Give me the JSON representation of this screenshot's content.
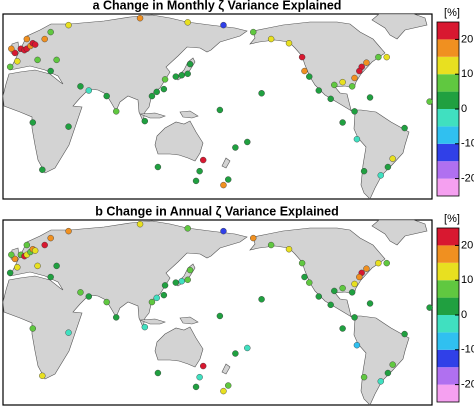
{
  "panels": [
    {
      "title": "a  Change in Monthly ζ Variance Explained",
      "stations": [
        [
          -5,
          50,
          22
        ],
        [
          0,
          53,
          20
        ],
        [
          3,
          52,
          25
        ],
        [
          5,
          53,
          22
        ],
        [
          8,
          55,
          18
        ],
        [
          10,
          57,
          23
        ],
        [
          12,
          56,
          20
        ],
        [
          5,
          60,
          15
        ],
        [
          -8,
          53,
          18
        ],
        [
          -3,
          44,
          10
        ],
        [
          -9,
          40,
          5
        ],
        [
          14,
          45,
          8
        ],
        [
          20,
          60,
          15
        ],
        [
          25,
          65,
          8
        ],
        [
          40,
          70,
          12
        ],
        [
          30,
          45,
          5
        ],
        [
          25,
          37,
          2
        ],
        [
          100,
          75,
          15
        ],
        [
          140,
          72,
          12
        ],
        [
          170,
          70,
          -15
        ],
        [
          140,
          35,
          3
        ],
        [
          135,
          34,
          0
        ],
        [
          130,
          33,
          1
        ],
        [
          142,
          42,
          2
        ],
        [
          121,
          31,
          5
        ],
        [
          114,
          22,
          3
        ],
        [
          110,
          19,
          2
        ],
        [
          120,
          24,
          1
        ],
        [
          104,
          1,
          0
        ],
        [
          80,
          8,
          5
        ],
        [
          72,
          19,
          2
        ],
        [
          50,
          26,
          3
        ],
        [
          57,
          23,
          -2
        ],
        [
          40,
          -3,
          0
        ],
        [
          18,
          -34,
          2
        ],
        [
          10,
          0,
          3
        ],
        [
          -17,
          15,
          8
        ],
        [
          153,
          -27,
          20
        ],
        [
          115,
          -32,
          1
        ],
        [
          147,
          -42,
          0
        ],
        [
          174,
          -41,
          2
        ],
        [
          150,
          -35,
          1
        ],
        [
          170,
          -45,
          15
        ],
        [
          167,
          9,
          2
        ],
        [
          -158,
          21,
          3
        ],
        [
          -170,
          -14,
          1
        ],
        [
          180,
          -18,
          0
        ],
        [
          -165,
          65,
          8
        ],
        [
          -150,
          60,
          10
        ],
        [
          -135,
          57,
          12
        ],
        [
          -124,
          47,
          20
        ],
        [
          -122,
          37,
          15
        ],
        [
          -118,
          33,
          2
        ],
        [
          -110,
          23,
          3
        ],
        [
          -100,
          17,
          1
        ],
        [
          -80,
          8,
          0
        ],
        [
          -78,
          -12,
          -5
        ],
        [
          -72,
          -35,
          2
        ],
        [
          -90,
          0,
          1
        ],
        [
          -70,
          43,
          15
        ],
        [
          -74,
          40,
          20
        ],
        [
          -76,
          37,
          22
        ],
        [
          -80,
          32,
          18
        ],
        [
          -82,
          26,
          5
        ],
        [
          -90,
          29,
          10
        ],
        [
          -97,
          27,
          5
        ],
        [
          -67,
          18,
          2
        ],
        [
          -60,
          47,
          8
        ],
        [
          -53,
          47,
          12
        ],
        [
          -38,
          -4,
          2
        ],
        [
          -48,
          -26,
          12
        ],
        [
          -58,
          -38,
          -5
        ],
        [
          -52,
          -32,
          0
        ]
      ]
    },
    {
      "title": "b  Change in Annual ζ Variance Explained",
      "stations": [
        [
          -5,
          50,
          15
        ],
        [
          0,
          53,
          8
        ],
        [
          3,
          52,
          20
        ],
        [
          5,
          53,
          12
        ],
        [
          8,
          55,
          5
        ],
        [
          10,
          57,
          18
        ],
        [
          12,
          56,
          10
        ],
        [
          5,
          60,
          8
        ],
        [
          -8,
          53,
          5
        ],
        [
          -3,
          44,
          12
        ],
        [
          -9,
          40,
          2
        ],
        [
          14,
          45,
          10
        ],
        [
          20,
          60,
          20
        ],
        [
          25,
          65,
          15
        ],
        [
          40,
          70,
          18
        ],
        [
          30,
          45,
          2
        ],
        [
          25,
          37,
          0
        ],
        [
          100,
          75,
          12
        ],
        [
          140,
          72,
          8
        ],
        [
          170,
          70,
          -15
        ],
        [
          140,
          35,
          5
        ],
        [
          135,
          34,
          -2
        ],
        [
          130,
          33,
          3
        ],
        [
          142,
          42,
          8
        ],
        [
          121,
          31,
          0
        ],
        [
          114,
          22,
          -3
        ],
        [
          110,
          19,
          5
        ],
        [
          120,
          24,
          2
        ],
        [
          104,
          1,
          -2
        ],
        [
          80,
          8,
          2
        ],
        [
          72,
          19,
          5
        ],
        [
          50,
          26,
          8
        ],
        [
          57,
          23,
          0
        ],
        [
          40,
          -3,
          -3
        ],
        [
          18,
          -34,
          12
        ],
        [
          10,
          0,
          5
        ],
        [
          -17,
          15,
          3
        ],
        [
          153,
          -27,
          22
        ],
        [
          115,
          -32,
          0
        ],
        [
          147,
          -42,
          2
        ],
        [
          174,
          -41,
          8
        ],
        [
          150,
          -35,
          -5
        ],
        [
          170,
          -45,
          12
        ],
        [
          167,
          9,
          0
        ],
        [
          -158,
          21,
          2
        ],
        [
          -170,
          -14,
          -3
        ],
        [
          180,
          -18,
          3
        ],
        [
          -165,
          65,
          15
        ],
        [
          -150,
          60,
          5
        ],
        [
          -135,
          57,
          10
        ],
        [
          -124,
          47,
          8
        ],
        [
          -122,
          37,
          3
        ],
        [
          -118,
          33,
          5
        ],
        [
          -110,
          23,
          2
        ],
        [
          -100,
          17,
          0
        ],
        [
          -80,
          8,
          3
        ],
        [
          -78,
          -12,
          -8
        ],
        [
          -72,
          -35,
          5
        ],
        [
          -90,
          0,
          2
        ],
        [
          -70,
          43,
          18
        ],
        [
          -74,
          40,
          22
        ],
        [
          -76,
          37,
          15
        ],
        [
          -80,
          32,
          10
        ],
        [
          -82,
          26,
          2
        ],
        [
          -90,
          29,
          8
        ],
        [
          -97,
          27,
          3
        ],
        [
          -67,
          18,
          0
        ],
        [
          -60,
          47,
          12
        ],
        [
          -53,
          47,
          5
        ],
        [
          -38,
          -4,
          0
        ],
        [
          -48,
          -26,
          8
        ],
        [
          -58,
          -38,
          -3
        ],
        [
          -52,
          -32,
          2
        ]
      ]
    }
  ],
  "colorbar": {
    "unit": "[%]",
    "bounds": [
      -25,
      -20,
      -15,
      -10,
      -5,
      0,
      5,
      10,
      15,
      20,
      25
    ],
    "colors": [
      "#f5a0f0",
      "#b070f0",
      "#3040e8",
      "#30c0f0",
      "#40e0c0",
      "#20a040",
      "#60c840",
      "#e8e020",
      "#f09020",
      "#d81830"
    ],
    "ticks": [
      -20,
      -10,
      0,
      10,
      20
    ]
  }
}
